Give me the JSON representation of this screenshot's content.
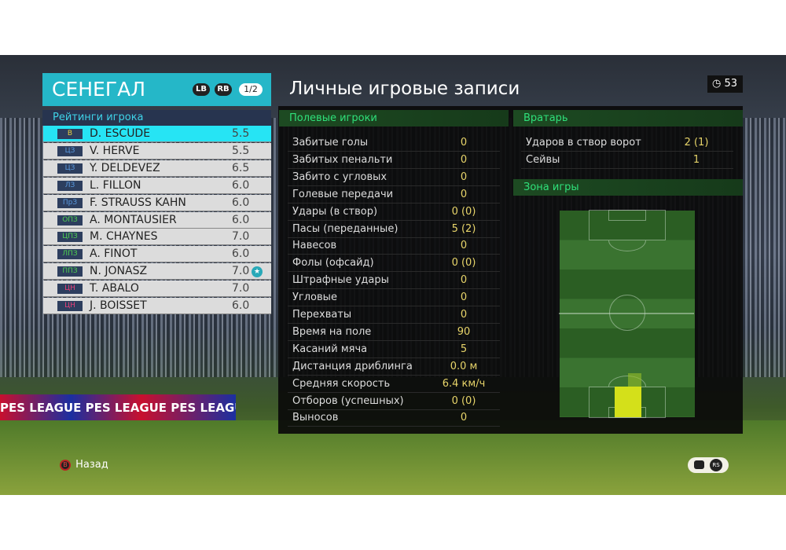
{
  "team": {
    "name": "СЕНЕГАЛ",
    "lb": "LB",
    "rb": "RB",
    "page": "1/2"
  },
  "ratings_title": "Рейтинги игрока",
  "players": [
    {
      "pos": "В",
      "name": "D. ESCUDE",
      "rating": "5.5",
      "pos_color": "#e8d040",
      "selected": true
    },
    {
      "pos": "ЦЗ",
      "name": "V. HERVE",
      "rating": "5.5",
      "pos_color": "#5a9ae0"
    },
    {
      "pos": "ЦЗ",
      "name": "Y. DELDEVEZ",
      "rating": "6.5",
      "pos_color": "#5a9ae0"
    },
    {
      "pos": "ЛЗ",
      "name": "L. FILLON",
      "rating": "6.0",
      "pos_color": "#5a9ae0"
    },
    {
      "pos": "ПрЗ",
      "name": "F. STRAUSS KAHN",
      "rating": "6.0",
      "pos_color": "#5a9ae0"
    },
    {
      "pos": "ОПЗ",
      "name": "A. MONTAUSIER",
      "rating": "6.0",
      "pos_color": "#4fd24f"
    },
    {
      "pos": "ЦПЗ",
      "name": "M. CHAYNES",
      "rating": "7.0",
      "pos_color": "#4fd24f"
    },
    {
      "pos": "ЛПЗ",
      "name": "A. FINOT",
      "rating": "6.0",
      "pos_color": "#4fd24f"
    },
    {
      "pos": "ППЗ",
      "name": "N. JONASZ",
      "rating": "7.0",
      "pos_color": "#4fd24f",
      "star": true
    },
    {
      "pos": "ЦН",
      "name": "T. ABALO",
      "rating": "7.0",
      "pos_color": "#e8407a"
    },
    {
      "pos": "ЦН",
      "name": "J. BOISSET",
      "rating": "6.0",
      "pos_color": "#e8407a"
    }
  ],
  "title": "Личные игровые записи",
  "timer": "53",
  "field": {
    "header": "Полевые игроки",
    "stats": [
      [
        "Забитые голы",
        "0"
      ],
      [
        "Забитых пенальти",
        "0"
      ],
      [
        "Забито с угловых",
        "0"
      ],
      [
        "Голевые передачи",
        "0"
      ],
      [
        "Удары (в створ)",
        "0 (0)"
      ],
      [
        "Пасы (переданные)",
        "5 (2)"
      ],
      [
        "Навесов",
        "0"
      ],
      [
        "Фолы (офсайд)",
        "0 (0)"
      ],
      [
        "Штрафные удары",
        "0"
      ],
      [
        "Угловые",
        "0"
      ],
      [
        "Перехваты",
        "0"
      ],
      [
        "Время на поле",
        "90"
      ],
      [
        "Касаний мяча",
        "5"
      ],
      [
        "Дистанция дриблинга",
        "0.0 м"
      ],
      [
        "Средняя скорость",
        "6.4 км/ч"
      ],
      [
        "Отборов (успешных)",
        "0 (0)"
      ],
      [
        "Выносов",
        "0"
      ]
    ]
  },
  "keeper": {
    "header": "Вратарь",
    "stats": [
      [
        "Ударов в створ ворот",
        "2 (1)"
      ],
      [
        "Сейвы",
        "1"
      ]
    ]
  },
  "zone": {
    "header": "Зона игры",
    "heat_color": "#d4e01a"
  },
  "ads": "PES LEAGUE  PES LEAGUE  PES LEAGUE  PES LEAGUE",
  "footer": {
    "back_key": "B",
    "back": "Назад"
  }
}
